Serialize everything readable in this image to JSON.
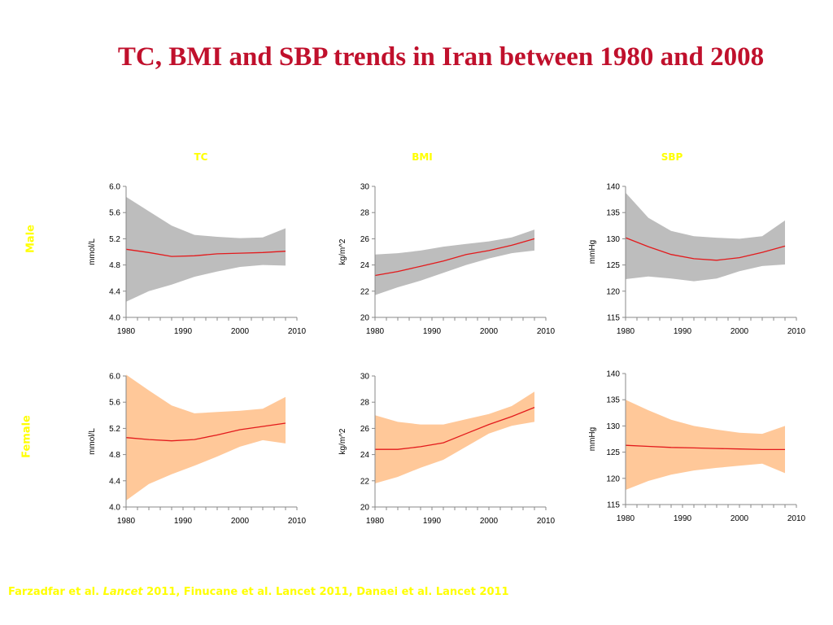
{
  "title": "TC, BMI and SBP trends in Iran between 1980 and 2008",
  "column_headers": {
    "tc": "TC",
    "bmi": "BMI",
    "sbp": "SBP"
  },
  "row_headers": {
    "male": "Male",
    "female": "Female"
  },
  "citation": {
    "part1": "Farzadfar et al. ",
    "journal": "Lancet",
    "part2": " 2011, Finucane et al. Lancet 2011, Danaei et al. Lancet 2011"
  },
  "colors": {
    "title": "#c0102c",
    "header_text": "#ffff00",
    "trend_line": "#e31a1c",
    "male_band": "#bdbdbd",
    "female_band": "#ffc899"
  },
  "chart_data": [
    {
      "id": "male-tc",
      "type": "area",
      "sex": "Male",
      "metric": "TC",
      "ylabel": "mmol/L",
      "ylim": [
        4.0,
        6.0
      ],
      "yticks": [
        "4.0",
        "4.4",
        "4.8",
        "5.2",
        "5.6",
        "6.0"
      ],
      "xlim": [
        1980,
        2010
      ],
      "xticks": [
        "1980",
        "1990",
        "2000",
        "2010"
      ],
      "x": [
        1980,
        1984,
        1988,
        1992,
        1996,
        2000,
        2004,
        2008
      ],
      "mean": [
        5.04,
        4.99,
        4.93,
        4.94,
        4.97,
        4.98,
        4.99,
        5.01
      ],
      "upper": [
        5.84,
        5.62,
        5.4,
        5.26,
        5.23,
        5.21,
        5.22,
        5.36
      ],
      "lower": [
        4.24,
        4.4,
        4.5,
        4.62,
        4.7,
        4.77,
        4.8,
        4.79
      ]
    },
    {
      "id": "male-bmi",
      "type": "area",
      "sex": "Male",
      "metric": "BMI",
      "ylabel": "kg/m^2",
      "ylim": [
        20,
        30
      ],
      "yticks": [
        "20",
        "22",
        "24",
        "26",
        "28",
        "30"
      ],
      "xlim": [
        1980,
        2010
      ],
      "xticks": [
        "1980",
        "1990",
        "2000",
        "2010"
      ],
      "x": [
        1980,
        1984,
        1988,
        1992,
        1996,
        2000,
        2004,
        2008
      ],
      "mean": [
        23.2,
        23.5,
        23.9,
        24.3,
        24.8,
        25.1,
        25.5,
        26.0
      ],
      "upper": [
        24.8,
        24.9,
        25.1,
        25.4,
        25.6,
        25.8,
        26.1,
        26.7
      ],
      "lower": [
        21.7,
        22.3,
        22.8,
        23.4,
        24.0,
        24.5,
        24.9,
        25.1
      ]
    },
    {
      "id": "male-sbp",
      "type": "area",
      "sex": "Male",
      "metric": "SBP",
      "ylabel": "mmHg",
      "ylim": [
        115,
        140
      ],
      "yticks": [
        "115",
        "120",
        "125",
        "130",
        "135",
        "140"
      ],
      "xlim": [
        1980,
        2010
      ],
      "xticks": [
        "1980",
        "1990",
        "2000",
        "2010"
      ],
      "x": [
        1980,
        1984,
        1988,
        1992,
        1996,
        2000,
        2004,
        2008
      ],
      "mean": [
        130.2,
        128.5,
        127.0,
        126.2,
        125.9,
        126.4,
        127.4,
        128.6
      ],
      "upper": [
        138.8,
        134.0,
        131.5,
        130.5,
        130.2,
        130.0,
        130.5,
        133.5
      ],
      "lower": [
        122.3,
        122.8,
        122.4,
        121.9,
        122.4,
        123.8,
        124.8,
        125.1
      ]
    },
    {
      "id": "female-tc",
      "type": "area",
      "sex": "Female",
      "metric": "TC",
      "ylabel": "mmol/L",
      "ylim": [
        4.0,
        6.0
      ],
      "yticks": [
        "4.0",
        "4.4",
        "4.8",
        "5.2",
        "5.6",
        "6.0"
      ],
      "xlim": [
        1980,
        2010
      ],
      "xticks": [
        "1980",
        "1990",
        "2000",
        "2010"
      ],
      "x": [
        1980,
        1984,
        1988,
        1992,
        1996,
        2000,
        2004,
        2008
      ],
      "mean": [
        5.06,
        5.03,
        5.01,
        5.03,
        5.1,
        5.18,
        5.23,
        5.28
      ],
      "upper": [
        6.02,
        5.78,
        5.55,
        5.43,
        5.45,
        5.47,
        5.5,
        5.68
      ],
      "lower": [
        4.1,
        4.35,
        4.5,
        4.63,
        4.77,
        4.92,
        5.02,
        4.97
      ]
    },
    {
      "id": "female-bmi",
      "type": "area",
      "sex": "Female",
      "metric": "BMI",
      "ylabel": "kg/m^2",
      "ylim": [
        20,
        30
      ],
      "yticks": [
        "20",
        "22",
        "24",
        "26",
        "28",
        "30"
      ],
      "xlim": [
        1980,
        2010
      ],
      "xticks": [
        "1980",
        "1990",
        "2000",
        "2010"
      ],
      "x": [
        1980,
        1984,
        1988,
        1992,
        1996,
        2000,
        2004,
        2008
      ],
      "mean": [
        24.4,
        24.4,
        24.6,
        24.9,
        25.6,
        26.3,
        26.9,
        27.6
      ],
      "upper": [
        27.0,
        26.5,
        26.3,
        26.3,
        26.7,
        27.1,
        27.7,
        28.8
      ],
      "lower": [
        21.8,
        22.3,
        23.0,
        23.6,
        24.6,
        25.6,
        26.2,
        26.5
      ]
    },
    {
      "id": "female-sbp",
      "type": "area",
      "sex": "Female",
      "metric": "SBP",
      "ylabel": "mmHg",
      "ylim": [
        115,
        140
      ],
      "yticks": [
        "115",
        "120",
        "125",
        "130",
        "135",
        "140"
      ],
      "xlim": [
        1980,
        2010
      ],
      "xticks": [
        "1980",
        "1990",
        "2000",
        "2010"
      ],
      "x": [
        1980,
        1984,
        1988,
        1992,
        1996,
        2000,
        2004,
        2008
      ],
      "mean": [
        126.3,
        126.1,
        125.9,
        125.8,
        125.7,
        125.6,
        125.5,
        125.5
      ],
      "upper": [
        135.0,
        133.0,
        131.2,
        130.0,
        129.3,
        128.7,
        128.5,
        130.0
      ],
      "lower": [
        117.8,
        119.5,
        120.7,
        121.5,
        122.0,
        122.4,
        122.8,
        121.0
      ]
    }
  ]
}
